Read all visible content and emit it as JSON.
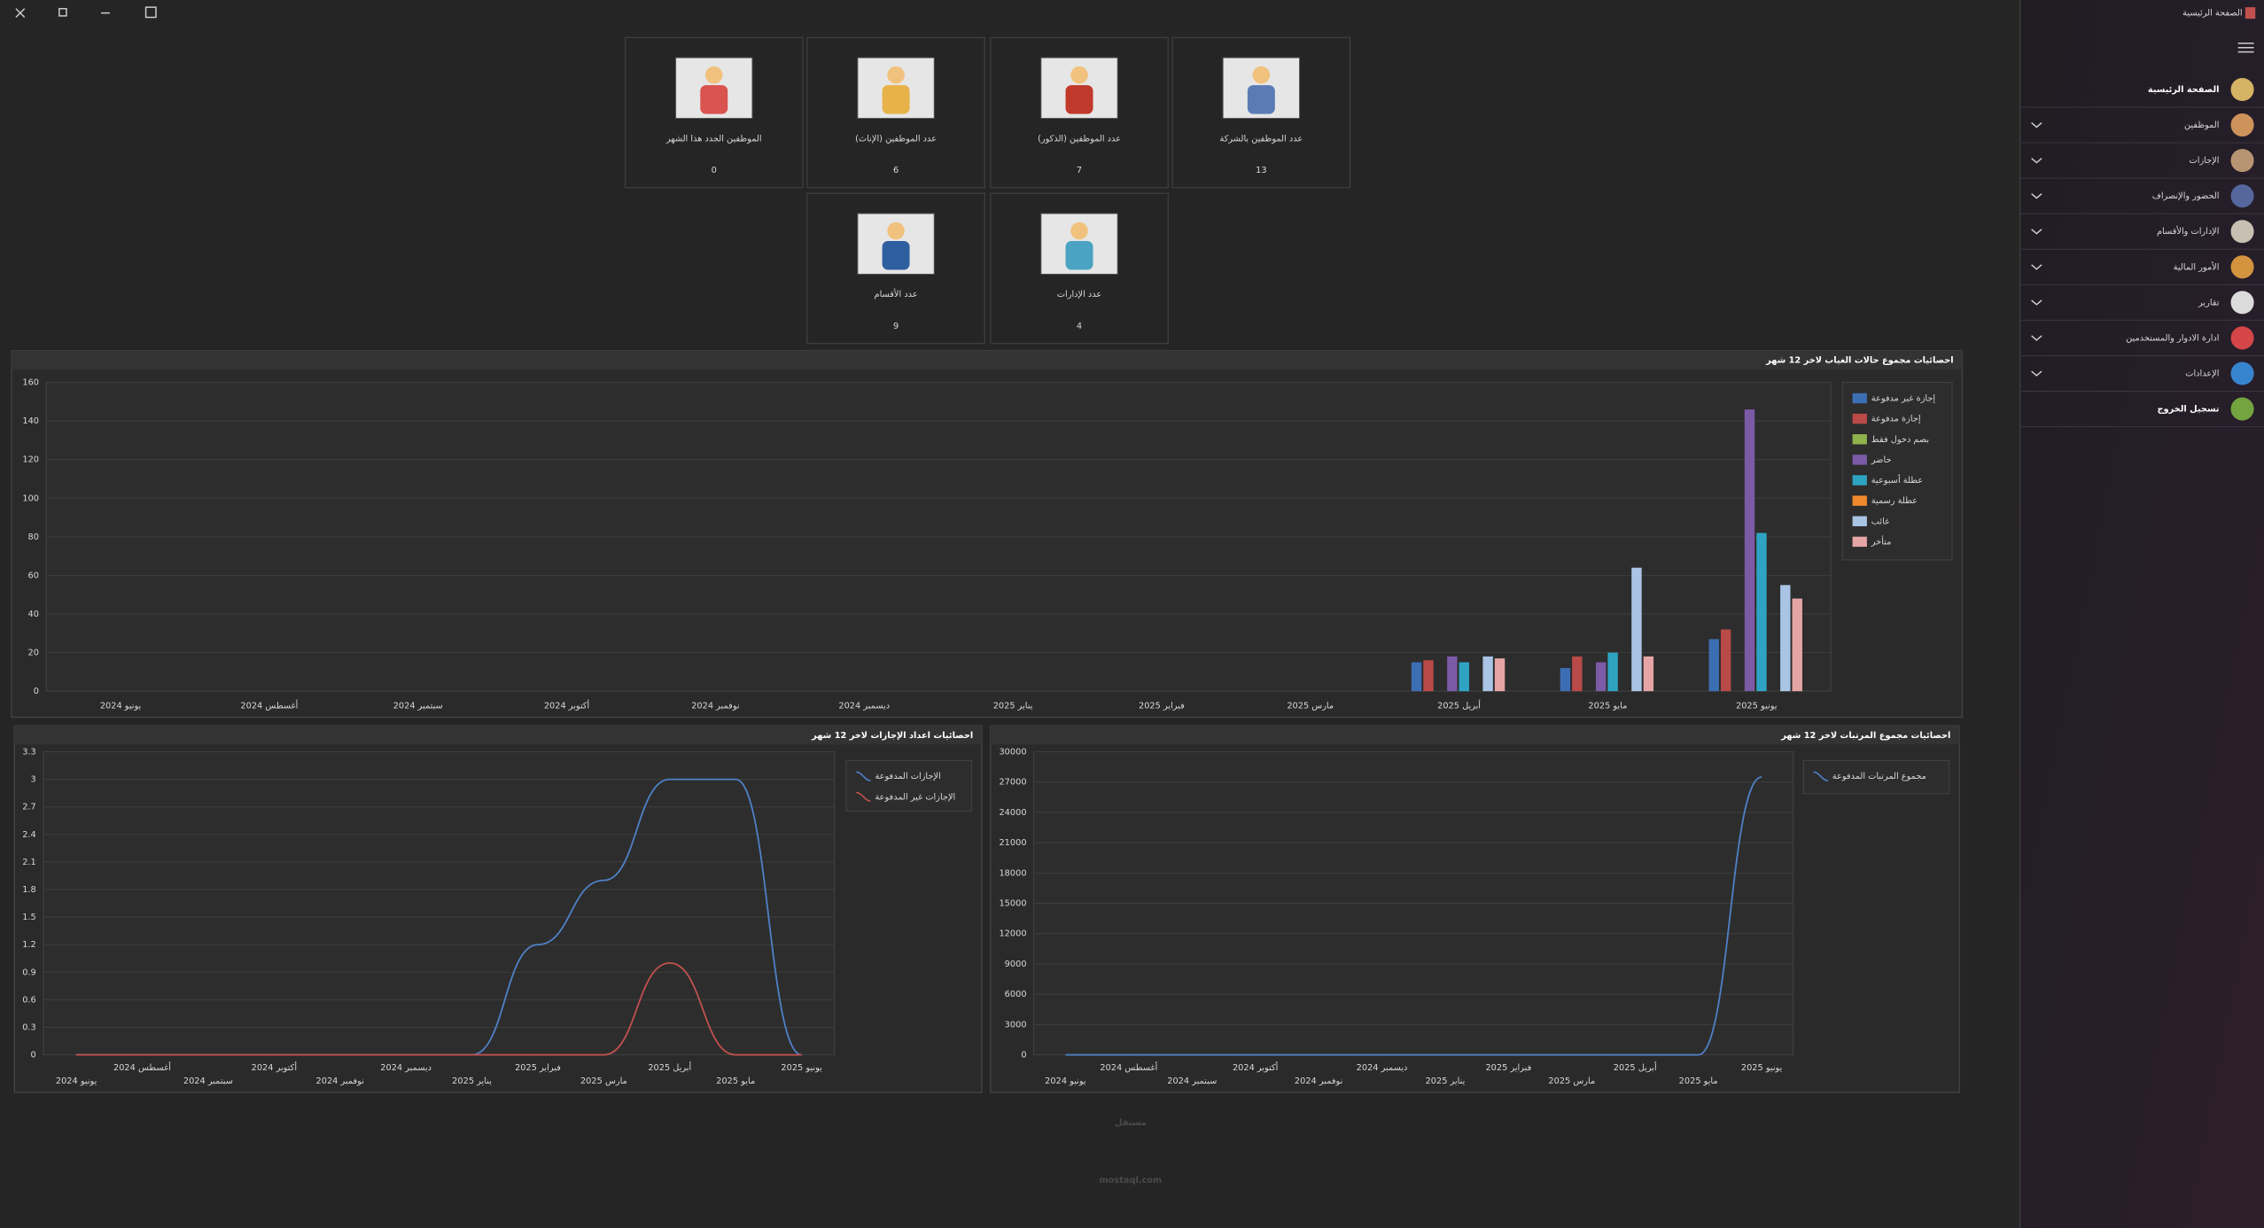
{
  "sidebar": {
    "title": "الصفحة الرئيسية",
    "menu": [
      "الصفحة الرئيسية",
      "الموظفين",
      "الإجازات",
      "الحضور والإنصراف",
      "الإدارات والأقسام",
      "الأمور المالية",
      "تقارير",
      "ادارة الادوار والمستخدمين",
      "الإعدادات",
      "تسجيل الخروج"
    ]
  },
  "cards": [
    {
      "label": "عدد الموظفين بالشركة",
      "value": 13
    },
    {
      "label": "عدد الموظفين (الذكور)",
      "value": 7
    },
    {
      "label": "عدد الموظفين (الإناث)",
      "value": 6
    },
    {
      "label": "الموظفين الجدد هذا الشهر",
      "value": 0
    },
    {
      "label": "عدد الإدارات",
      "value": 4
    },
    {
      "label": "عدد الأقسام",
      "value": 9
    }
  ],
  "charts": [
    {
      "type": "bar",
      "title": "احصائيات مجموع حالات الغياب لاخر 12 شهر",
      "categories": [
        "يونيو 2024",
        "أغسطس 2024",
        "سبتمبر 2024",
        "أكتوبر 2024",
        "نوفمبر 2024",
        "ديسمبر 2024",
        "يناير 2025",
        "فبراير 2025",
        "مارس 2025",
        "أبريل 2025",
        "مايو 2025",
        "يونيو 2025"
      ],
      "series": [
        {
          "name": "إجازة غير مدفوعة",
          "color": "#3c6eb4",
          "values": [
            0,
            0,
            0,
            0,
            0,
            0,
            0,
            0,
            0,
            15,
            12,
            27
          ]
        },
        {
          "name": "إجازة مدفوعة",
          "color": "#b94a48",
          "values": [
            0,
            0,
            0,
            0,
            0,
            0,
            0,
            0,
            0,
            16,
            18,
            32
          ]
        },
        {
          "name": "بصم دخول فقط",
          "color": "#8fb24b",
          "values": [
            0,
            0,
            0,
            0,
            0,
            0,
            0,
            0,
            0,
            0,
            0,
            0
          ]
        },
        {
          "name": "حاضر",
          "color": "#7b5aa6",
          "values": [
            0,
            0,
            0,
            0,
            0,
            0,
            0,
            0,
            0,
            18,
            15,
            146
          ]
        },
        {
          "name": "عطلة أسبوعية",
          "color": "#2fa3c2",
          "values": [
            0,
            0,
            0,
            0,
            0,
            0,
            0,
            0,
            0,
            15,
            20,
            82
          ]
        },
        {
          "name": "عطلة رسمية",
          "color": "#f0892e",
          "values": [
            0,
            0,
            0,
            0,
            0,
            0,
            0,
            0,
            0,
            0,
            0,
            0
          ]
        },
        {
          "name": "غائب",
          "color": "#a9c4e4",
          "values": [
            0,
            0,
            0,
            0,
            0,
            0,
            0,
            0,
            0,
            18,
            64,
            55
          ]
        },
        {
          "name": "متأخر",
          "color": "#e6a5a5",
          "values": [
            0,
            0,
            0,
            0,
            0,
            0,
            0,
            0,
            0,
            17,
            18,
            48
          ]
        }
      ],
      "ylim": [
        0,
        160
      ],
      "yticks": [
        0,
        20,
        40,
        60,
        80,
        100,
        120,
        140,
        160
      ],
      "grid": true
    },
    {
      "type": "line",
      "title": "احصائيات اعداد الإجازات لاخر 12 شهر",
      "categories": [
        "يونيو 2024",
        "أغسطس 2024",
        "سبتمبر 2024",
        "أكتوبر 2024",
        "نوفمبر 2024",
        "ديسمبر 2024",
        "يناير 2025",
        "فبراير 2025",
        "مارس 2025",
        "أبريل 2025",
        "مايو 2025",
        "يونيو 2025"
      ],
      "series": [
        {
          "name": "الإجازات المدفوعة",
          "color": "#4f81c7",
          "values": [
            0,
            0,
            0,
            0,
            0,
            0,
            0,
            1.2,
            1.9,
            3,
            3,
            0
          ]
        },
        {
          "name": "الإجازات غير المدفوعة",
          "color": "#c0504d",
          "values": [
            0,
            0,
            0,
            0,
            0,
            0,
            0,
            0,
            0,
            1,
            0,
            0
          ]
        }
      ],
      "ylim": [
        0,
        3.3
      ],
      "yticks": [
        0,
        0.3,
        0.6,
        0.9,
        1.2,
        1.5,
        1.8,
        2.1,
        2.4,
        2.7,
        3,
        3.3
      ],
      "grid": true
    },
    {
      "type": "line",
      "title": "احصائيات مجموع المرتبات لاخر 12 شهر",
      "categories": [
        "يونيو 2024",
        "أغسطس 2024",
        "سبتمبر 2024",
        "أكتوبر 2024",
        "نوفمبر 2024",
        "ديسمبر 2024",
        "يناير 2025",
        "فبراير 2025",
        "مارس 2025",
        "أبريل 2025",
        "مايو 2025",
        "يونيو 2025"
      ],
      "series": [
        {
          "name": "مجموع المرتبات المدفوعة",
          "color": "#4f81c7",
          "values": [
            0,
            0,
            0,
            0,
            0,
            0,
            0,
            0,
            0,
            0,
            0,
            27500
          ]
        }
      ],
      "ylim": [
        0,
        30000
      ],
      "yticks": [
        0,
        3000,
        6000,
        9000,
        12000,
        15000,
        18000,
        21000,
        24000,
        27000,
        30000
      ],
      "grid": true
    }
  ],
  "watermark": {
    "arabic": "مستقل",
    "latin": "mostaql.com"
  }
}
